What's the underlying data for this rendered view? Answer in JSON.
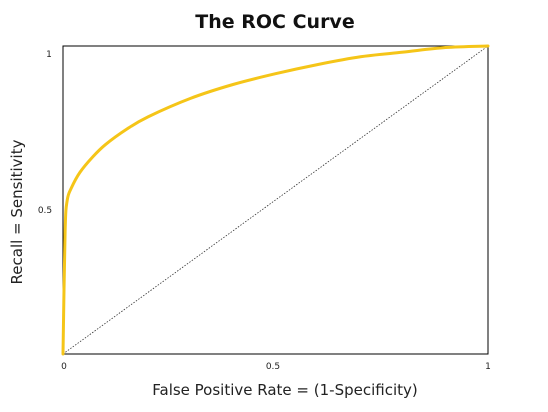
{
  "chart_data": {
    "type": "line",
    "title": "The ROC Curve",
    "xlabel": "False Positive Rate = (1-Specificity)",
    "ylabel": "Recall = Sensitivity",
    "xlim": [
      0,
      1
    ],
    "ylim": [
      0,
      1
    ],
    "x_ticks": [
      "0",
      "0.5",
      "1"
    ],
    "y_ticks": [
      "0.5",
      "1"
    ],
    "grid": false,
    "colors": {
      "curve": "#f5c518",
      "diagonal": "#333333",
      "frame": "#000000"
    },
    "series": [
      {
        "x": [
          0,
          0.005,
          0.01,
          0.02,
          0.04,
          0.07,
          0.1,
          0.15,
          0.2,
          0.3,
          0.4,
          0.5,
          0.6,
          0.7,
          0.8,
          0.9,
          1.0
        ],
        "y": [
          0,
          0.4,
          0.5,
          0.54,
          0.59,
          0.64,
          0.68,
          0.73,
          0.77,
          0.83,
          0.875,
          0.91,
          0.94,
          0.965,
          0.98,
          0.995,
          1.0
        ]
      },
      {
        "x": [
          0,
          1
        ],
        "y": [
          0,
          1
        ],
        "style": "dotted"
      }
    ]
  }
}
